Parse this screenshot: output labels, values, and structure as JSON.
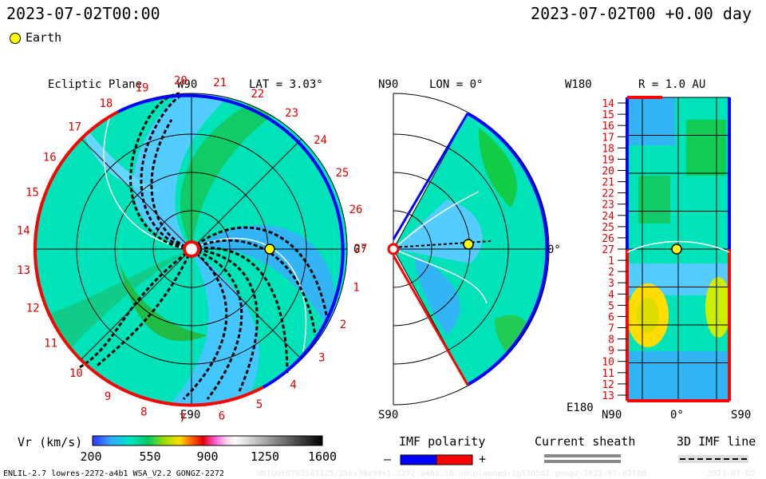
{
  "header": {
    "left_time": "2023-07-02T00:00",
    "right_time": "2023-07-02T00 +0.00 day",
    "earth_label": "Earth"
  },
  "ecliptic": {
    "title": "Ecliptic Plane",
    "lat": "LAT = 3.03°",
    "w90": "W90",
    "e90": "E90",
    "zero": "0°",
    "rotation_labels": [
      "1",
      "2",
      "3",
      "4",
      "5",
      "6",
      "7",
      "8",
      "9",
      "10",
      "11",
      "12",
      "13",
      "14",
      "15",
      "16",
      "17",
      "18",
      "19",
      "20",
      "21",
      "22",
      "23",
      "24",
      "25",
      "26",
      "27"
    ]
  },
  "meridional": {
    "title": "LON = 0°",
    "n90": "N90",
    "s90": "S90",
    "zero": "0°"
  },
  "radial": {
    "title": "R = 1.0 AU",
    "w180": "W180",
    "e180": "E180",
    "n90": "N90",
    "zero": "0°",
    "s90": "S90",
    "rotation_labels": [
      "14",
      "15",
      "16",
      "17",
      "18",
      "19",
      "20",
      "21",
      "22",
      "23",
      "24",
      "25",
      "26",
      "27",
      "1",
      "2",
      "3",
      "4",
      "5",
      "6",
      "7",
      "8",
      "9",
      "10",
      "11",
      "12",
      "13"
    ]
  },
  "legend": {
    "vr_label": "Vr (km/s)",
    "ticks": [
      "200",
      "550",
      "900",
      "1250",
      "1600"
    ],
    "imf_title": "IMF polarity",
    "imf_minus": "–",
    "imf_plus": "+",
    "sheath_title": "Current sheath",
    "imf3d_title": "3D IMF line"
  },
  "footer": {
    "run_info": "ENLIL-2.7 lowres-2272-a4b1 WSA_V2.2 GONGZ-2272",
    "watermark": "UNIQUE0703141125/256x30x90x1.2272-a4b1.16-nocplanned-1g53d5d2.gongz-2023-07-02T00",
    "date_right": "2023-07-02"
  },
  "colors": {
    "imf_negative": "#0000ff",
    "imf_positive": "#ff0000",
    "earth": "#ffff00"
  }
}
